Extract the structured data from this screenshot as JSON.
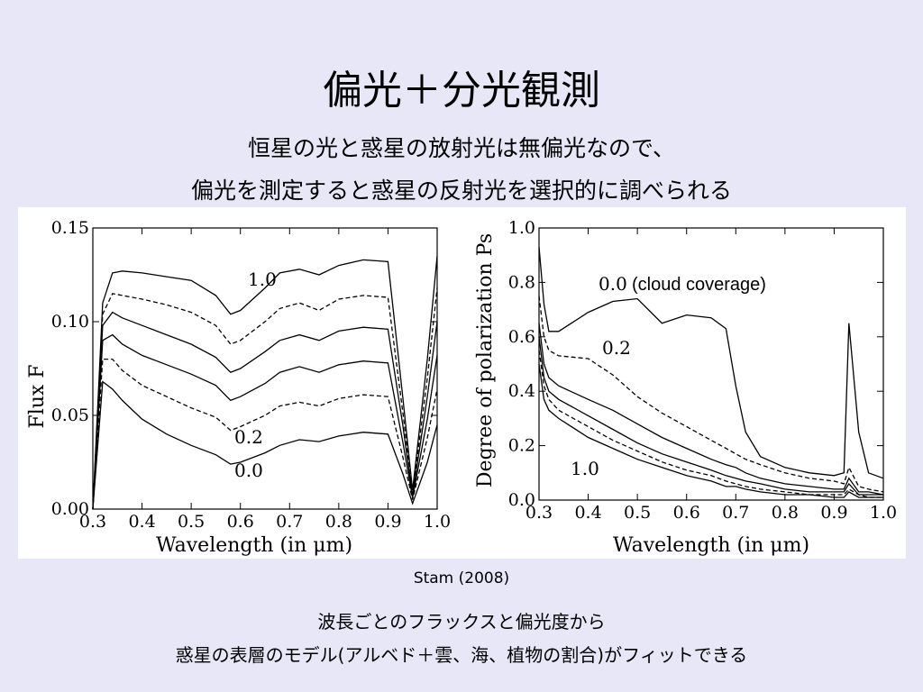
{
  "slide": {
    "title": "偏光＋分光観測",
    "subtitle_line1": "恒星の光と惑星の放射光は無偏光なので、",
    "subtitle_line2": "偏光を測定すると惑星の反射光を選択的に調べられる",
    "citation": "Stam (2008)",
    "caption_line1": "波長ごとのフラックスと偏光度から",
    "caption_line2": "惑星の表層のモデル(アルベド＋雲、海、植物の割合)がフィットできる"
  },
  "chart_data": [
    {
      "type": "line",
      "xlabel": "Wavelength (in μm)",
      "ylabel": "Flux F",
      "xlim": [
        0.3,
        1.0
      ],
      "ylim": [
        0.0,
        0.15
      ],
      "xticks": [
        "0.3",
        "0.4",
        "0.5",
        "0.6",
        "0.7",
        "0.8",
        "0.9",
        "1.0"
      ],
      "yticks": [
        "0.00",
        "0.05",
        "0.10",
        "0.15"
      ],
      "annotations": [
        "1.0",
        "0.2",
        "0.0"
      ],
      "x": [
        0.3,
        0.32,
        0.34,
        0.36,
        0.4,
        0.45,
        0.5,
        0.55,
        0.58,
        0.6,
        0.65,
        0.68,
        0.72,
        0.76,
        0.8,
        0.85,
        0.9,
        0.93,
        0.95,
        0.98,
        1.0
      ],
      "series": [
        {
          "values": [
            0.0,
            0.11,
            0.126,
            0.127,
            0.126,
            0.124,
            0.122,
            0.114,
            0.104,
            0.106,
            0.118,
            0.126,
            0.128,
            0.125,
            0.13,
            0.133,
            0.132,
            0.06,
            0.01,
            0.08,
            0.135
          ],
          "dashed": false
        },
        {
          "values": [
            0.0,
            0.104,
            0.115,
            0.114,
            0.112,
            0.109,
            0.105,
            0.098,
            0.088,
            0.09,
            0.1,
            0.107,
            0.11,
            0.106,
            0.112,
            0.114,
            0.113,
            0.052,
            0.008,
            0.07,
            0.118
          ],
          "dashed": true
        },
        {
          "values": [
            0.0,
            0.098,
            0.105,
            0.102,
            0.098,
            0.093,
            0.088,
            0.081,
            0.073,
            0.075,
            0.084,
            0.09,
            0.093,
            0.09,
            0.095,
            0.097,
            0.096,
            0.045,
            0.007,
            0.06,
            0.1
          ],
          "dashed": false
        },
        {
          "values": [
            0.0,
            0.09,
            0.093,
            0.088,
            0.082,
            0.077,
            0.072,
            0.066,
            0.058,
            0.06,
            0.067,
            0.073,
            0.076,
            0.073,
            0.077,
            0.079,
            0.078,
            0.036,
            0.006,
            0.048,
            0.082
          ],
          "dashed": false
        },
        {
          "values": [
            0.0,
            0.08,
            0.08,
            0.074,
            0.066,
            0.06,
            0.054,
            0.049,
            0.042,
            0.044,
            0.05,
            0.055,
            0.057,
            0.055,
            0.059,
            0.061,
            0.06,
            0.028,
            0.005,
            0.038,
            0.064
          ],
          "dashed": true
        },
        {
          "values": [
            0.0,
            0.068,
            0.064,
            0.058,
            0.048,
            0.04,
            0.034,
            0.029,
            0.024,
            0.025,
            0.03,
            0.034,
            0.037,
            0.036,
            0.039,
            0.041,
            0.04,
            0.019,
            0.003,
            0.025,
            0.045
          ],
          "dashed": false
        }
      ]
    },
    {
      "type": "line",
      "xlabel": "Wavelength (in μm)",
      "ylabel": "Degree of polarization Ps",
      "xlim": [
        0.3,
        1.0
      ],
      "ylim": [
        0.0,
        1.0
      ],
      "xticks": [
        "0.3",
        "0.4",
        "0.5",
        "0.6",
        "0.7",
        "0.8",
        "0.9",
        "1.0"
      ],
      "yticks": [
        "0.0",
        "0.2",
        "0.4",
        "0.6",
        "0.8",
        "1.0"
      ],
      "annotations": [
        "0.0",
        "(cloud coverage)",
        "0.2",
        "1.0"
      ],
      "x": [
        0.3,
        0.31,
        0.32,
        0.34,
        0.4,
        0.45,
        0.5,
        0.55,
        0.6,
        0.65,
        0.68,
        0.7,
        0.72,
        0.75,
        0.8,
        0.85,
        0.9,
        0.92,
        0.93,
        0.95,
        0.97,
        1.0
      ],
      "series": [
        {
          "values": [
            0.93,
            0.72,
            0.62,
            0.62,
            0.69,
            0.73,
            0.74,
            0.65,
            0.68,
            0.67,
            0.63,
            0.42,
            0.25,
            0.16,
            0.12,
            0.1,
            0.09,
            0.1,
            0.65,
            0.25,
            0.1,
            0.08
          ],
          "dashed": false
        },
        {
          "values": [
            0.75,
            0.6,
            0.55,
            0.53,
            0.52,
            0.46,
            0.38,
            0.32,
            0.27,
            0.22,
            0.19,
            0.17,
            0.15,
            0.13,
            0.1,
            0.08,
            0.07,
            0.06,
            0.12,
            0.05,
            0.04,
            0.03
          ],
          "dashed": true
        },
        {
          "values": [
            0.65,
            0.5,
            0.45,
            0.42,
            0.37,
            0.33,
            0.28,
            0.23,
            0.19,
            0.15,
            0.13,
            0.12,
            0.1,
            0.08,
            0.06,
            0.05,
            0.04,
            0.04,
            0.08,
            0.03,
            0.03,
            0.02
          ],
          "dashed": false
        },
        {
          "values": [
            0.6,
            0.45,
            0.4,
            0.37,
            0.31,
            0.26,
            0.21,
            0.17,
            0.14,
            0.11,
            0.09,
            0.08,
            0.07,
            0.06,
            0.04,
            0.03,
            0.03,
            0.03,
            0.06,
            0.02,
            0.02,
            0.02
          ],
          "dashed": false
        },
        {
          "values": [
            0.55,
            0.42,
            0.37,
            0.33,
            0.27,
            0.22,
            0.18,
            0.14,
            0.11,
            0.09,
            0.07,
            0.06,
            0.05,
            0.04,
            0.03,
            0.02,
            0.02,
            0.02,
            0.04,
            0.02,
            0.01,
            0.01
          ],
          "dashed": true
        },
        {
          "values": [
            0.5,
            0.37,
            0.33,
            0.3,
            0.23,
            0.19,
            0.15,
            0.12,
            0.09,
            0.07,
            0.05,
            0.05,
            0.04,
            0.03,
            0.02,
            0.02,
            0.01,
            0.01,
            0.03,
            0.01,
            0.01,
            0.01
          ],
          "dashed": false
        }
      ]
    }
  ]
}
